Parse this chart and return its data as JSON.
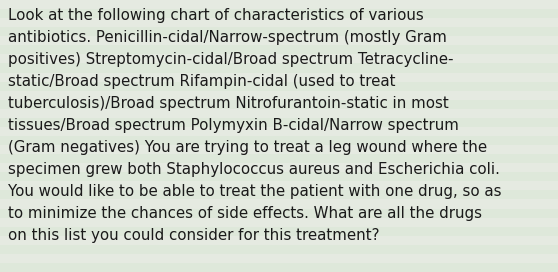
{
  "lines": [
    "Look at the following chart of characteristics of various",
    "antibiotics. Penicillin-cidal/Narrow-spectrum (mostly Gram",
    "positives) Streptomycin-cidal/Broad spectrum Tetracycline-",
    "static/Broad spectrum Rifampin-cidal (used to treat",
    "tuberculosis)/Broad spectrum Nitrofurantoin-static in most",
    "tissues/Broad spectrum Polymyxin B-cidal/Narrow spectrum",
    "(Gram negatives) You are trying to treat a leg wound where the",
    "specimen grew both Staphylococcus aureus and Escherichia coli.",
    "You would like to be able to treat the patient with one drug, so as",
    "to minimize the chances of side effects. What are all the drugs",
    "on this list you could consider for this treatment?"
  ],
  "bg_color_base": "#e2e8de",
  "stripe_colors": [
    "#dde8d8",
    "#e8eee4",
    "#dfe6da",
    "#e4ebe0"
  ],
  "text_color": "#1a1a1a",
  "font_size": 10.8,
  "fig_width": 5.58,
  "fig_height": 2.72,
  "dpi": 100,
  "font_family": "DejaVu Sans"
}
